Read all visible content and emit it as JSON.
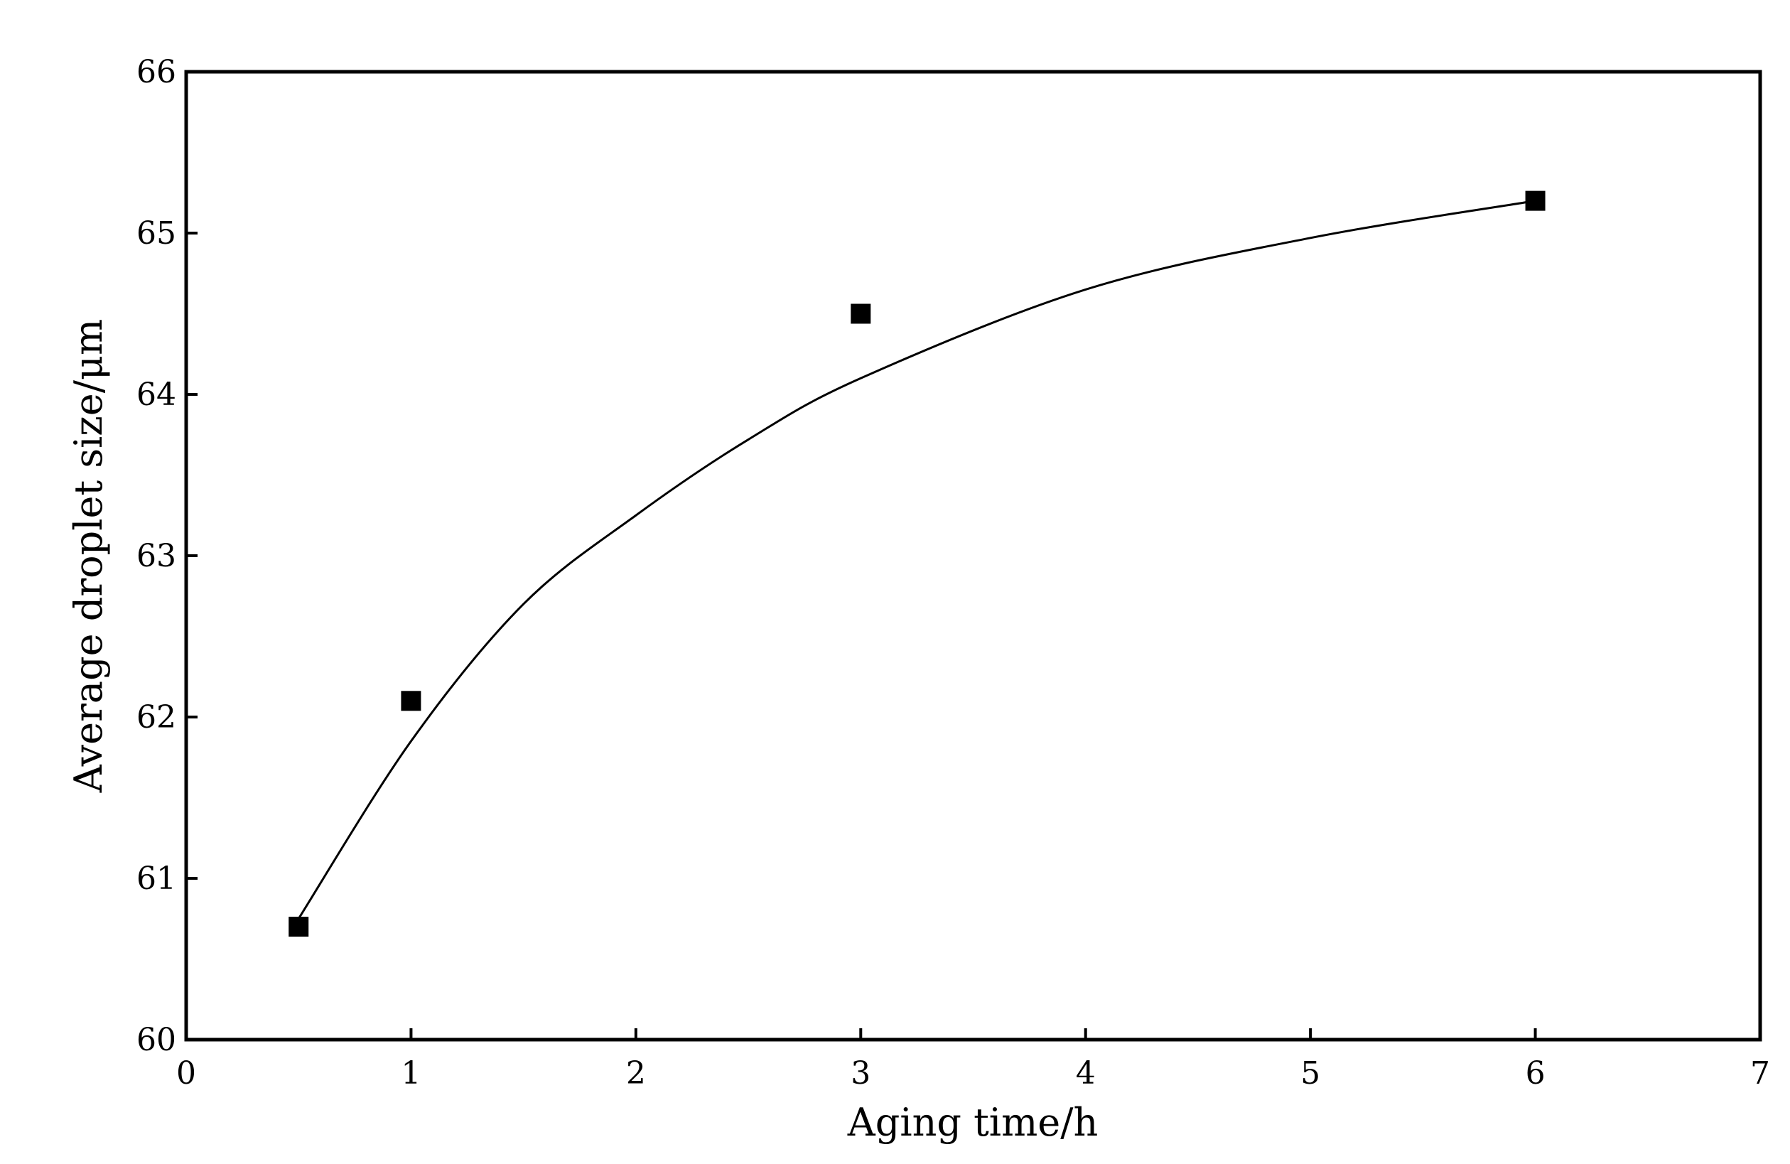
{
  "chart_data": {
    "type": "scatter",
    "xlabel": "Aging time/h",
    "ylabel": "Average droplet size/μm",
    "xlim": [
      0,
      7
    ],
    "ylim": [
      60,
      66
    ],
    "xticks": [
      0,
      1,
      2,
      3,
      4,
      5,
      6,
      7
    ],
    "yticks": [
      60,
      61,
      62,
      63,
      64,
      65,
      66
    ],
    "series": [
      {
        "type": "scatter",
        "marker": "square",
        "color": "#000000",
        "x": [
          0.5,
          1,
          3,
          6
        ],
        "values": [
          60.7,
          62.1,
          64.5,
          65.2
        ]
      },
      {
        "type": "line",
        "color": "#000000",
        "x": [
          0.5,
          1,
          1.5,
          2,
          2.5,
          3,
          4,
          5,
          6
        ],
        "values": [
          60.75,
          61.85,
          62.7,
          63.25,
          63.72,
          64.1,
          64.65,
          64.97,
          65.2
        ]
      }
    ]
  }
}
